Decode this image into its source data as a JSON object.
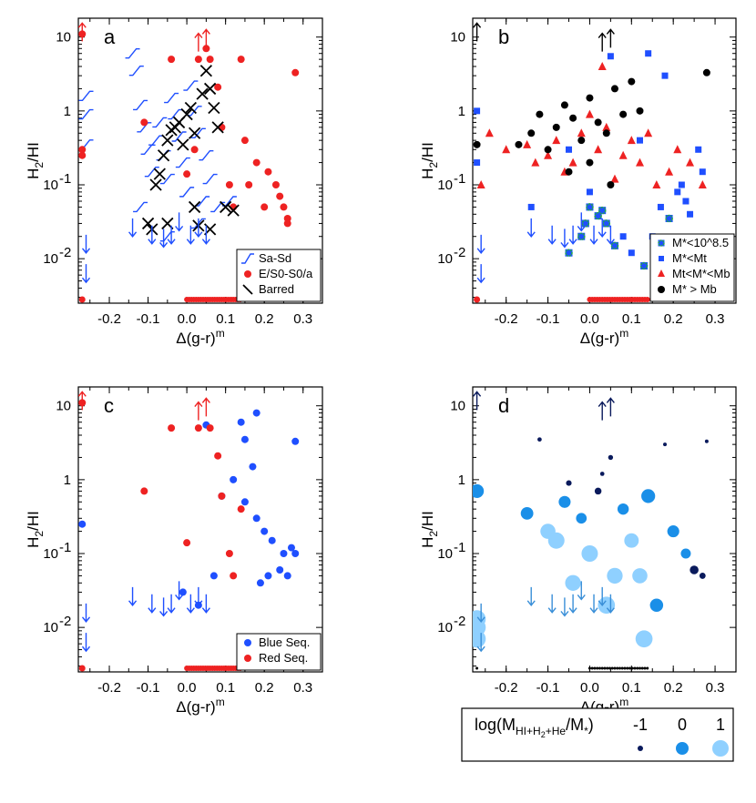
{
  "chart_data": [
    {
      "panel": "a",
      "type": "scatter",
      "xlabel": "Δ(g-r)",
      "xlabel_sup": "m",
      "ylabel": "H",
      "ylabel_sub": "2",
      "ylabel_tail": "/HI",
      "xlim": [
        -0.28,
        0.35
      ],
      "ylim": [
        0.0025,
        18
      ],
      "yscale": "log",
      "xticks": [
        "-0.2",
        "-0.1",
        "0.0",
        "0.1",
        "0.2",
        "0.3"
      ],
      "legend": {
        "position": "bottom-right",
        "entries": [
          "Sa-Sd",
          "E/S0-S0/a",
          "Barred"
        ]
      },
      "series": [
        {
          "name": "Sa-Sd",
          "color": "#1f4fff",
          "marker": "slanted-line",
          "points": [
            [
              -0.26,
              1.6
            ],
            [
              -0.26,
              0.9
            ],
            [
              -0.26,
              0.35
            ],
            [
              -0.14,
              6
            ],
            [
              -0.13,
              3.5
            ],
            [
              -0.12,
              1.2
            ],
            [
              -0.11,
              0.6
            ],
            [
              -0.1,
              0.3
            ],
            [
              -0.09,
              0.15
            ],
            [
              -0.08,
              0.4
            ],
            [
              -0.07,
              0.7
            ],
            [
              -0.06,
              0.25
            ],
            [
              -0.05,
              0.12
            ],
            [
              -0.04,
              1.5
            ],
            [
              -0.03,
              0.9
            ],
            [
              -0.02,
              0.45
            ],
            [
              -0.01,
              0.2
            ],
            [
              0.0,
              0.08
            ],
            [
              0.01,
              2.2
            ],
            [
              0.02,
              1.0
            ],
            [
              0.03,
              0.5
            ],
            [
              0.04,
              0.06
            ],
            [
              0.05,
              0.25
            ],
            [
              0.06,
              0.12
            ],
            [
              0.08,
              0.05
            ],
            [
              0.11,
              0.06
            ],
            [
              -0.12,
              0.05
            ],
            [
              -0.05,
              0.02
            ],
            [
              0.03,
              0.03
            ]
          ]
        },
        {
          "name": "E/S0-S0/a",
          "color": "#ee2222",
          "marker": "circle",
          "points": [
            [
              -0.27,
              11
            ],
            [
              -0.27,
              0.3
            ],
            [
              -0.27,
              0.25
            ],
            [
              -0.11,
              0.7
            ],
            [
              -0.04,
              5
            ],
            [
              0.03,
              5
            ],
            [
              0.05,
              7
            ],
            [
              0.06,
              5
            ],
            [
              0.08,
              2.1
            ],
            [
              0.09,
              0.6
            ],
            [
              0.11,
              0.1
            ],
            [
              0.12,
              0.05
            ],
            [
              0.14,
              5
            ],
            [
              0.15,
              0.4
            ],
            [
              0.16,
              0.1
            ],
            [
              0.18,
              0.2
            ],
            [
              0.2,
              0.05
            ],
            [
              0.21,
              0.15
            ],
            [
              0.23,
              0.1
            ],
            [
              0.24,
              0.07
            ],
            [
              0.25,
              0.05
            ],
            [
              0.26,
              0.035
            ],
            [
              0.28,
              3.3
            ],
            [
              0.26,
              0.03
            ],
            [
              0.02,
              0.3
            ],
            [
              0.0,
              0.14
            ]
          ]
        },
        {
          "name": "Barred",
          "color": "#000000",
          "marker": "x",
          "points": [
            [
              -0.08,
              0.1
            ],
            [
              -0.07,
              0.14
            ],
            [
              -0.06,
              0.25
            ],
            [
              -0.05,
              0.4
            ],
            [
              -0.04,
              0.55
            ],
            [
              -0.03,
              0.6
            ],
            [
              -0.02,
              0.7
            ],
            [
              -0.01,
              0.35
            ],
            [
              0.0,
              0.9
            ],
            [
              0.01,
              1.1
            ],
            [
              0.02,
              0.5
            ],
            [
              0.04,
              1.7
            ],
            [
              0.05,
              3.5
            ],
            [
              0.06,
              2.0
            ],
            [
              0.07,
              1.1
            ],
            [
              0.08,
              0.6
            ],
            [
              -0.1,
              0.03
            ],
            [
              -0.09,
              0.025
            ],
            [
              -0.05,
              0.03
            ],
            [
              0.02,
              0.05
            ],
            [
              0.03,
              0.028
            ],
            [
              0.06,
              0.025
            ],
            [
              0.1,
              0.05
            ],
            [
              0.12,
              0.045
            ]
          ]
        }
      ]
    },
    {
      "panel": "b",
      "type": "scatter",
      "xlabel": "Δ(g-r)",
      "xlabel_sup": "m",
      "ylabel": "H",
      "ylabel_sub": "2",
      "ylabel_tail": "/HI",
      "xlim": [
        -0.28,
        0.35
      ],
      "ylim": [
        0.0025,
        18
      ],
      "yscale": "log",
      "xticks": [
        "-0.2",
        "-0.1",
        "0.0",
        "0.1",
        "0.2",
        "0.3"
      ],
      "legend": {
        "position": "bottom-right",
        "entries": [
          "M*<10^8.5",
          "M*<Mt",
          "Mt<M*<Mb",
          "M* > Mb"
        ]
      },
      "series": [
        {
          "name": "M*<10^8.5",
          "color": "#22aa44",
          "marker": "green-star",
          "points": [
            [
              -0.05,
              0.012
            ],
            [
              -0.02,
              0.02
            ],
            [
              -0.01,
              0.03
            ],
            [
              0.0,
              0.05
            ],
            [
              0.02,
              0.038
            ],
            [
              0.03,
              0.045
            ],
            [
              0.04,
              0.03
            ],
            [
              0.06,
              0.015
            ],
            [
              0.13,
              0.008
            ],
            [
              0.19,
              0.035
            ]
          ]
        },
        {
          "name": "M*<Mt",
          "color": "#1f4fff",
          "marker": "square",
          "points": [
            [
              -0.27,
              1.0
            ],
            [
              -0.27,
              0.2
            ],
            [
              -0.14,
              0.05
            ],
            [
              -0.05,
              0.3
            ],
            [
              0.0,
              0.08
            ],
            [
              0.05,
              5.5
            ],
            [
              0.08,
              0.02
            ],
            [
              0.1,
              0.012
            ],
            [
              0.12,
              0.4
            ],
            [
              0.14,
              6
            ],
            [
              0.15,
              0.02
            ],
            [
              0.17,
              0.05
            ],
            [
              0.18,
              3.0
            ],
            [
              0.2,
              0.015
            ],
            [
              0.22,
              0.1
            ],
            [
              0.24,
              0.04
            ],
            [
              0.26,
              0.3
            ],
            [
              0.27,
              0.15
            ],
            [
              0.23,
              0.06
            ],
            [
              0.21,
              0.08
            ]
          ]
        },
        {
          "name": "Mt<M*<Mb",
          "color": "#ee2222",
          "marker": "triangle",
          "points": [
            [
              -0.26,
              0.1
            ],
            [
              -0.24,
              0.5
            ],
            [
              -0.2,
              0.3
            ],
            [
              -0.15,
              0.35
            ],
            [
              -0.13,
              0.2
            ],
            [
              -0.1,
              0.25
            ],
            [
              -0.08,
              0.4
            ],
            [
              -0.06,
              0.15
            ],
            [
              -0.04,
              0.2
            ],
            [
              -0.02,
              0.5
            ],
            [
              0.0,
              0.9
            ],
            [
              0.02,
              0.3
            ],
            [
              0.04,
              0.6
            ],
            [
              0.06,
              0.12
            ],
            [
              0.08,
              0.25
            ],
            [
              0.1,
              0.4
            ],
            [
              0.12,
              0.2
            ],
            [
              0.14,
              0.5
            ],
            [
              0.16,
              0.1
            ],
            [
              0.19,
              0.15
            ],
            [
              0.21,
              0.3
            ],
            [
              0.24,
              0.2
            ],
            [
              0.27,
              0.1
            ],
            [
              0.03,
              4.0
            ]
          ]
        },
        {
          "name": "M* > Mb",
          "color": "#000000",
          "marker": "circle",
          "points": [
            [
              -0.27,
              0.35
            ],
            [
              -0.17,
              0.35
            ],
            [
              -0.14,
              0.5
            ],
            [
              -0.12,
              0.9
            ],
            [
              -0.1,
              0.3
            ],
            [
              -0.08,
              0.6
            ],
            [
              -0.06,
              1.2
            ],
            [
              -0.04,
              0.8
            ],
            [
              -0.02,
              0.4
            ],
            [
              0.0,
              1.5
            ],
            [
              0.02,
              0.7
            ],
            [
              0.04,
              0.5
            ],
            [
              0.06,
              2.0
            ],
            [
              0.08,
              0.9
            ],
            [
              0.1,
              2.5
            ],
            [
              0.28,
              3.3
            ],
            [
              0.12,
              1.0
            ],
            [
              0.0,
              0.2
            ],
            [
              -0.05,
              0.15
            ],
            [
              0.05,
              0.1
            ]
          ]
        }
      ]
    },
    {
      "panel": "c",
      "type": "scatter",
      "xlabel": "Δ(g-r)",
      "xlabel_sup": "m",
      "ylabel": "H",
      "ylabel_sub": "2",
      "ylabel_tail": "/HI",
      "xlim": [
        -0.28,
        0.35
      ],
      "ylim": [
        0.0025,
        18
      ],
      "yscale": "log",
      "xticks": [
        "-0.2",
        "-0.1",
        "0.0",
        "0.1",
        "0.2",
        "0.3"
      ],
      "legend": {
        "position": "bottom-right",
        "entries": [
          "Blue Seq.",
          "Red Seq."
        ]
      },
      "series": [
        {
          "name": "Blue Seq.",
          "color": "#1f4fff",
          "marker": "circle",
          "points": [
            [
              -0.27,
              0.25
            ],
            [
              0.05,
              5.5
            ],
            [
              0.14,
              6
            ],
            [
              0.18,
              8
            ],
            [
              0.15,
              3.5
            ],
            [
              0.17,
              1.5
            ],
            [
              0.12,
              1.0
            ],
            [
              0.09,
              0.6
            ],
            [
              0.15,
              0.5
            ],
            [
              0.18,
              0.3
            ],
            [
              0.2,
              0.2
            ],
            [
              0.22,
              0.15
            ],
            [
              0.25,
              0.1
            ],
            [
              0.27,
              0.12
            ],
            [
              0.24,
              0.06
            ],
            [
              0.21,
              0.05
            ],
            [
              0.19,
              0.04
            ],
            [
              0.26,
              0.05
            ],
            [
              0.28,
              3.3
            ],
            [
              0.28,
              0.1
            ],
            [
              0.03,
              0.02
            ],
            [
              0.07,
              0.05
            ],
            [
              -0.01,
              0.03
            ]
          ]
        },
        {
          "name": "Red Seq.",
          "color": "#ee2222",
          "marker": "circle",
          "points": [
            [
              -0.27,
              11
            ],
            [
              -0.11,
              0.7
            ],
            [
              -0.04,
              5
            ],
            [
              0.03,
              5
            ],
            [
              0.06,
              5
            ],
            [
              0.08,
              2.1
            ],
            [
              0.09,
              0.6
            ],
            [
              0.11,
              0.1
            ],
            [
              0.12,
              0.05
            ],
            [
              0.14,
              0.4
            ],
            [
              0.0,
              0.14
            ]
          ]
        }
      ]
    },
    {
      "panel": "d",
      "type": "scatter",
      "xlabel": "Δ(g-r)",
      "xlabel_sup": "m",
      "ylabel": "H",
      "ylabel_sub": "2",
      "ylabel_tail": "/HI",
      "xlim": [
        -0.28,
        0.35
      ],
      "ylim": [
        0.0025,
        18
      ],
      "yscale": "log",
      "xticks": [
        "-0.2",
        "-0.1",
        "0.0",
        "0.1",
        "0.2",
        "0.3"
      ],
      "colorbar": {
        "label": "log(M",
        "label_sub": "HI+H",
        "label_sub2": "2",
        "label_sub3": "+He",
        "label_tail": "/M",
        "label_tail_sub": "*",
        "label_close": ")",
        "ticks": [
          "-1",
          "0",
          "1"
        ],
        "colors": [
          "#0a1a5c",
          "#1a8fe8",
          "#8fd0ff"
        ]
      },
      "series": [
        {
          "name": "",
          "marker": "sized-circle",
          "points": [
            [
              -0.27,
              0.7,
              0.6
            ],
            [
              -0.27,
              0.013,
              1.2
            ],
            [
              -0.27,
              0.01,
              1.2
            ],
            [
              -0.27,
              0.007,
              1.2
            ],
            [
              -0.15,
              0.35,
              0.4
            ],
            [
              -0.12,
              3.5,
              -0.9
            ],
            [
              -0.1,
              0.2,
              0.8
            ],
            [
              -0.08,
              0.15,
              1.0
            ],
            [
              -0.06,
              0.5,
              0.3
            ],
            [
              -0.04,
              0.04,
              0.9
            ],
            [
              -0.02,
              0.3,
              0.1
            ],
            [
              0.0,
              0.1,
              1.0
            ],
            [
              0.02,
              0.7,
              -0.5
            ],
            [
              0.04,
              0.02,
              1.1
            ],
            [
              0.05,
              2.0,
              -0.8
            ],
            [
              0.06,
              0.05,
              0.9
            ],
            [
              0.08,
              0.4,
              0.2
            ],
            [
              0.1,
              0.15,
              0.7
            ],
            [
              0.12,
              0.05,
              0.8
            ],
            [
              0.13,
              0.007,
              1.1
            ],
            [
              0.14,
              0.6,
              0.6
            ],
            [
              0.16,
              0.02,
              0.5
            ],
            [
              0.18,
              3.0,
              -1.0
            ],
            [
              0.2,
              0.2,
              0.3
            ],
            [
              0.23,
              0.1,
              0.0
            ],
            [
              0.25,
              0.06,
              -0.2
            ],
            [
              0.27,
              0.05,
              -0.6
            ],
            [
              0.28,
              3.3,
              -1.0
            ],
            [
              -0.05,
              0.9,
              -0.7
            ],
            [
              0.03,
              1.2,
              -0.9
            ]
          ]
        }
      ]
    }
  ]
}
